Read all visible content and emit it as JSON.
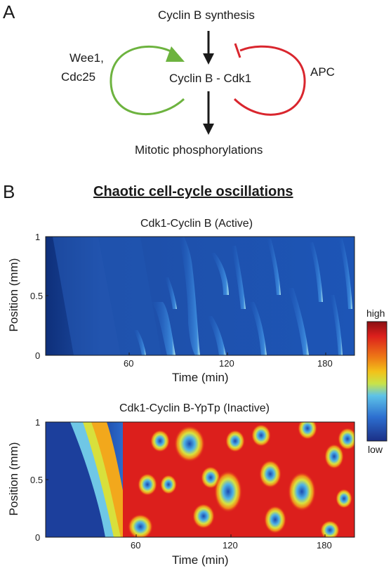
{
  "panel_a": {
    "letter": "A",
    "synthesis_label": "Cyclin B synthesis",
    "complex_label": "Cyclin B - Cdk1",
    "activator_label_line1": "Wee1,",
    "activator_label_line2": "Cdc25",
    "inhibitor_label": "APC",
    "output_label": "Mitotic phosphorylations",
    "colors": {
      "activation": "#6db33f",
      "inhibition": "#d9262e",
      "arrow": "#1a1a1a"
    }
  },
  "panel_b": {
    "letter": "B",
    "heading": "Chaotic cell-cycle oscillations",
    "colorbar": {
      "high_label": "high",
      "low_label": "low"
    },
    "plots": [
      {
        "title": "Cdk1-Cyclin B (Active)",
        "ylabel": "Position (mm)",
        "xlabel": "Time (min)",
        "y_ticks": [
          "1",
          "0.5",
          "0"
        ],
        "x_ticks": [
          "60",
          "120",
          "180"
        ]
      },
      {
        "title": "Cdk1-Cyclin B-YpTp (Inactive)",
        "ylabel": "Position (mm)",
        "xlabel": "Time (min)",
        "y_ticks": [
          "1",
          "0.5",
          "0"
        ],
        "x_ticks": [
          "60",
          "120",
          "180"
        ]
      }
    ]
  }
}
